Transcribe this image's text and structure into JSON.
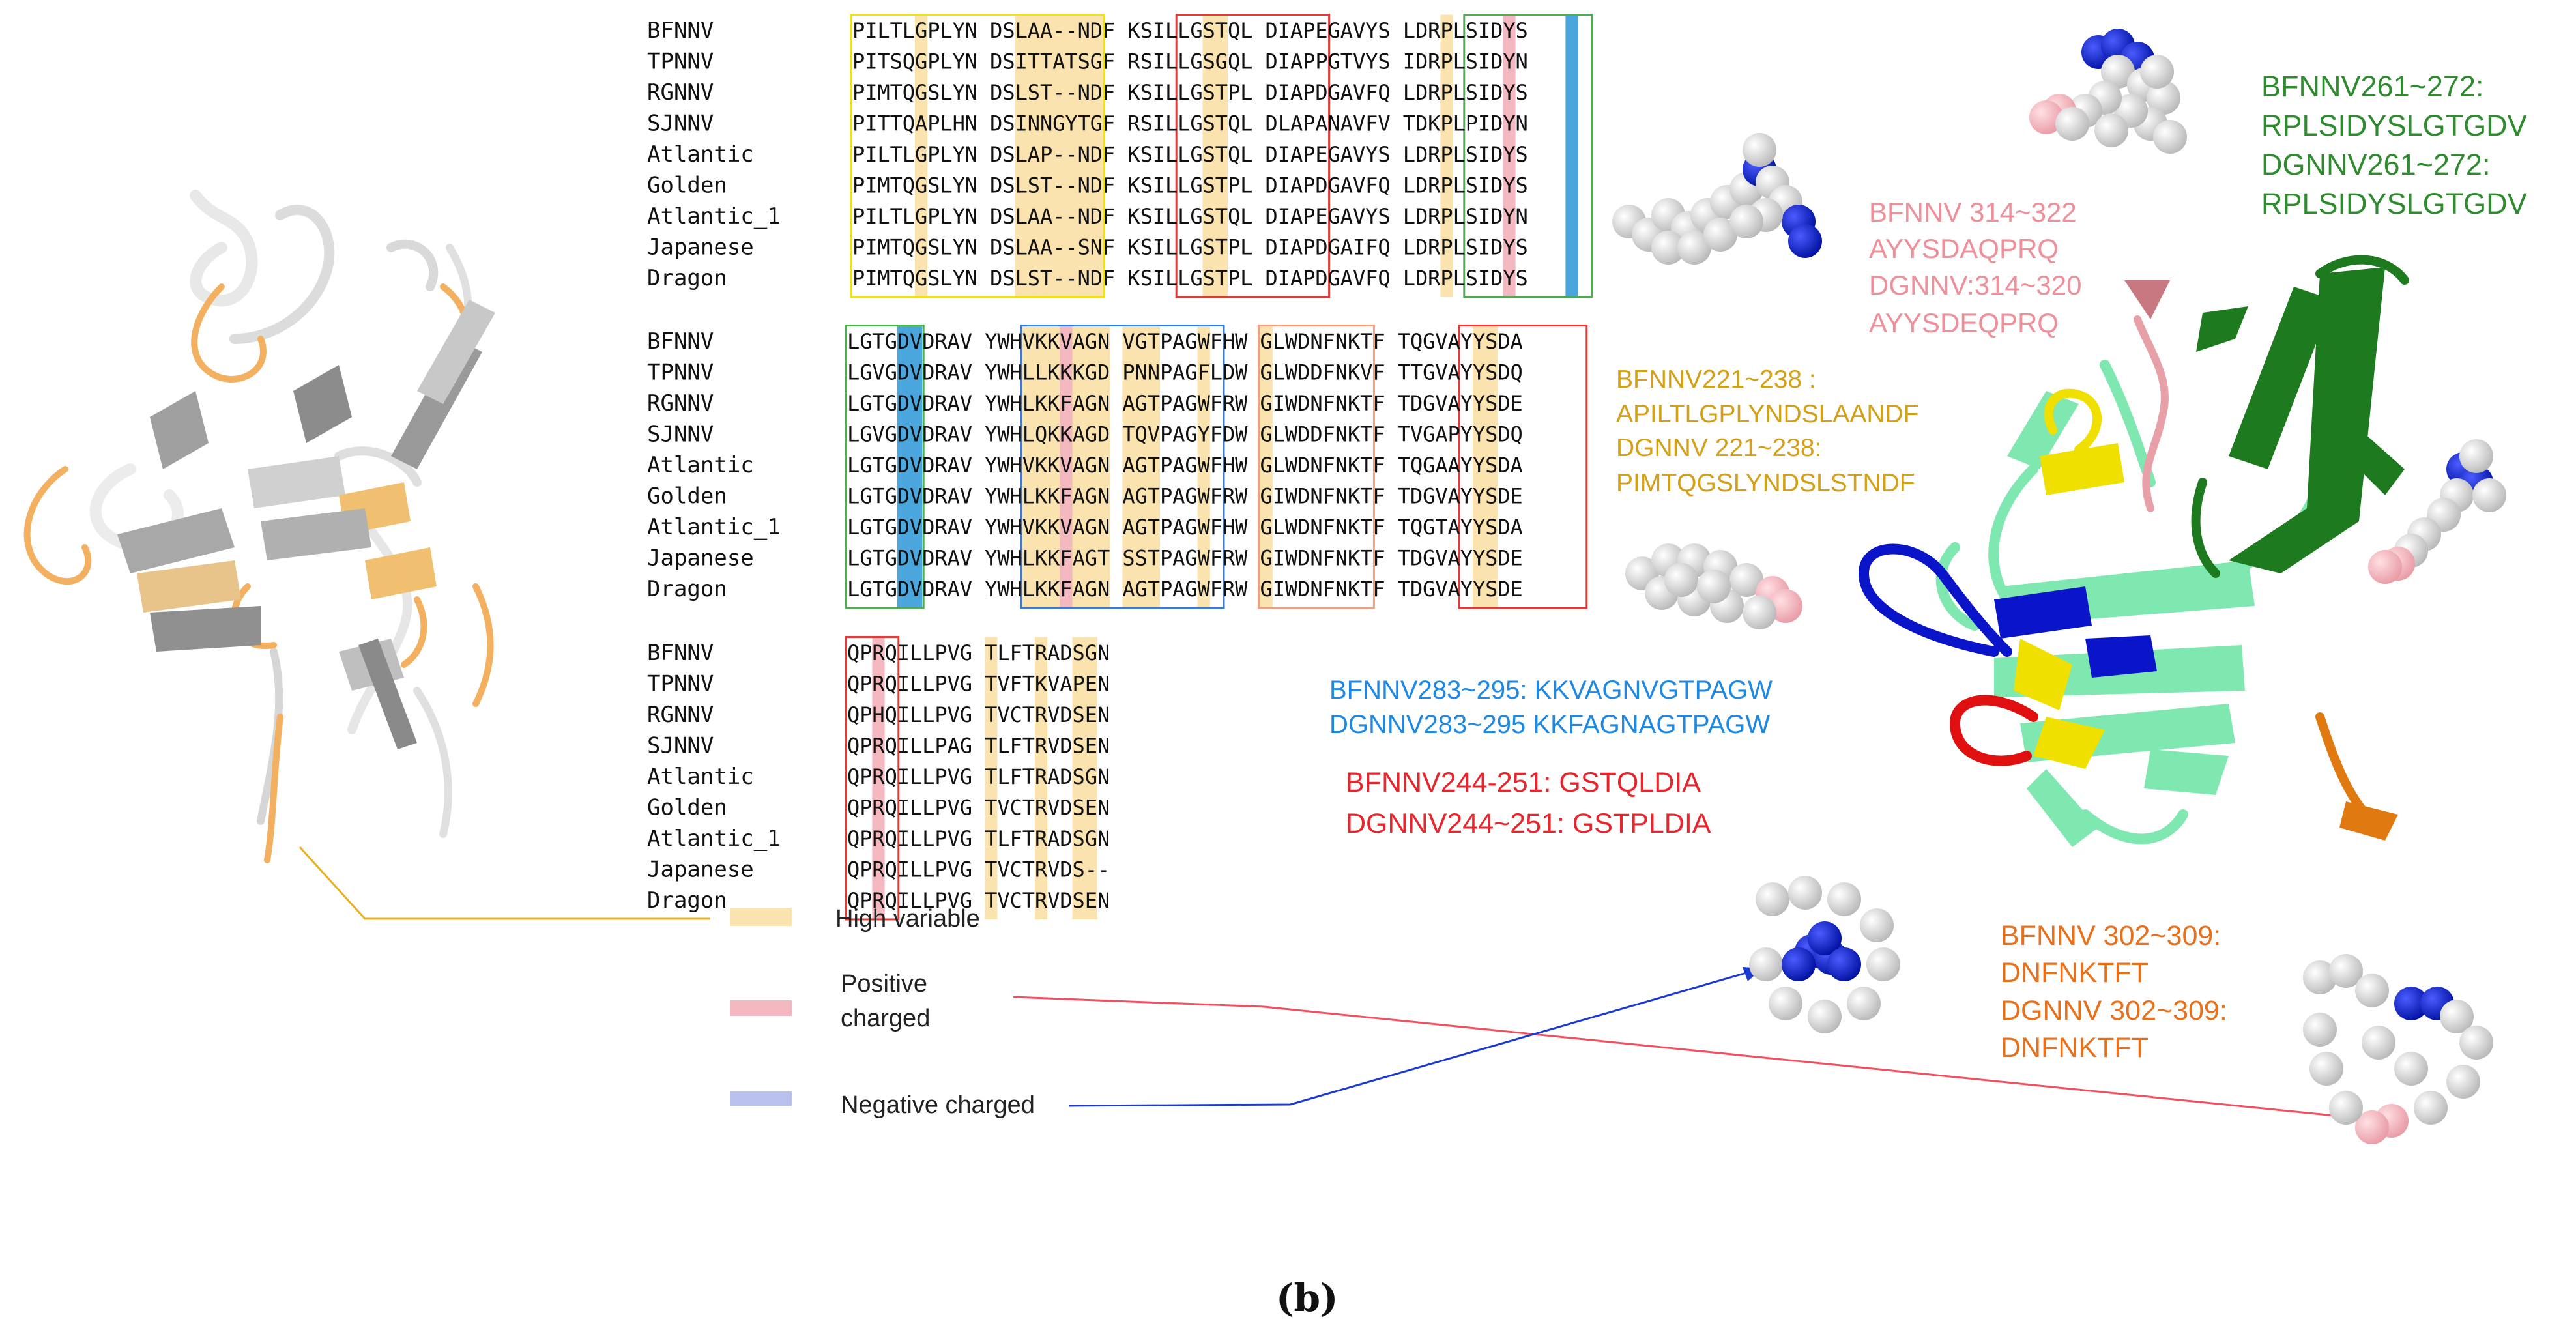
{
  "alignment": {
    "species": [
      "BFNNV",
      "TPNNV",
      "RGNNV",
      "SJNNV",
      "Atlantic",
      "Golden",
      "Atlantic_1",
      "Japanese",
      "Dragon"
    ],
    "block1": [
      "PILTLGPLYN DSLAA--NDF KSILLGSTQL DIAPEGAVYS LDRPLSIDYS",
      "PITSQGPLYN DSITTATSGF RSILLGSGQL DIAPPGTVYS IDRPLSIDYN",
      "PIMTQGSLYN DSLST--NDF KSILLGSTPL DIAPDGAVFQ LDRPLSIDYS",
      "PITTQAPLHN DSINNGYTGF RSILLGSTQL DLAPANAVFV TDKPLPIDYN",
      "PILTLGPLYN DSLAP--NDF KSILLGSTQL DIAPEGAVYS LDRPLSIDYS",
      "PIMTQGSLYN DSLST--NDF KSILLGSTPL DIAPDGAVFQ LDRPLSIDYS",
      "PILTLGPLYN DSLAA--NDF KSILLGSTQL DIAPEGAVYS LDRPLSIDYN",
      "PIMTQGSLYN DSLAA--SNF KSILLGSTPL DIAPDGAIFQ LDRPLSIDYS",
      "PIMTQGSLYN DSLST--NDF KSILLGSTPL DIAPDGAVFQ LDRPLSIDYS"
    ],
    "block2": [
      "LGTGDVDRAV YWHVKKVAGN VGTPAGWFHW GLWDNFNKTF TQGVAYYSDA",
      "LGVGDVDRAV YWHLLKKKGD PNNPAGFLDW GLWDDFNKVF TTGVAYYSDQ",
      "LGTGDVDRAV YWHLKKFAGN AGTPAGWFRW GIWDNFNKTF TDGVAYYSDE",
      "LGVGDVDRAV YWHLQKKAGD TQVPAGYFDW GLWDDFNKTF TVGAPYYSDQ",
      "LGTGDVDRAV YWHVKKVAGN AGTPAGWFHW GLWDNFNKTF TQGAAYYSDA",
      "LGTGDVDRAV YWHLKKFAGN AGTPAGWFRW GIWDNFNKTF TDGVAYYSDE",
      "LGTGDVDRAV YWHVKKVAGN AGTPAGWFHW GLWDNFNKTF TQGTAYYSDA",
      "LGTGDVDRAV YWHLKKFAGT SSTPAGWFRW GIWDNFNKTF TDGVAYYSDE",
      "LGTGDVDRAV YWHLKKFAGN AGTPAGWFRW GIWDNFNKTF TDGVAYYSDE"
    ],
    "block3": [
      "QPRQILLPVG TLFTRADSGN",
      "QPRQILLPVG TVFTKVAPEN",
      "QPHQILLPVG TVCTRVDSEN",
      "QPRQILLPAG TLFTRVDSEN",
      "QPRQILLPVG TLFTRADSGN",
      "QPRQILLPVG TVCTRVDSEN",
      "QPRQILLPVG TLFTRADSGN",
      "QPRQILLPVG TVCTRVDS--",
      "QPRQILLPVG TVCTRVDSEN"
    ]
  },
  "legend": {
    "high_variable": "High variable",
    "positive_line1": "Positive",
    "positive_line2": "charged",
    "negative": "Negative charged"
  },
  "annotations": {
    "blue_1": "BFNNV283~295: KKVAGNVGTPAGW",
    "blue_2": "DGNNV283~295 KKFAGNAGTPAGW",
    "red_1": "BFNNV244-251: GSTQLDIA",
    "red_2": "DGNNV244~251: GSTPLDIA",
    "gold_1": "BFNNV221~238 :",
    "gold_2": "APILTLGPLYNDSLAANDF",
    "gold_3": "DGNNV 221~238:",
    "gold_4": "PIMTQGSLYNDSLSTNDF",
    "pink_1": "BFNNV 314~322",
    "pink_2": "AYYSDAQPRQ",
    "pink_3": "DGNNV:314~320",
    "pink_4": "AYYSDEQPRQ",
    "green_1": "BFNNV261~272:",
    "green_2": "RPLSIDYSLGTGDV",
    "green_3": "DGNNV261~272:",
    "green_4": "RPLSIDYSLGTGDV",
    "orange_1": "BFNNV 302~309:",
    "orange_2": "DNFNKTFT",
    "orange_3": "DGNNV 302~309:",
    "orange_4": "DNFNKTFT"
  },
  "caption": "(b)",
  "colors": {
    "high_variable": "#fbe3b0",
    "positive": "#f4b8c0",
    "negative": "#b8c0ee",
    "conserved_blue": "#4aa6dd",
    "box_yellow": "#f2e300",
    "box_red": "#e53935",
    "box_green": "#4caf50",
    "box_blue": "#3a7bd5",
    "box_orange": "#f0a080",
    "text_blue": "#1e88e5",
    "text_red": "#e8242c",
    "text_gold": "#d4a017",
    "text_pink": "#ef8f9a",
    "text_green": "#2e8b2e",
    "text_orange": "#e8701a"
  }
}
